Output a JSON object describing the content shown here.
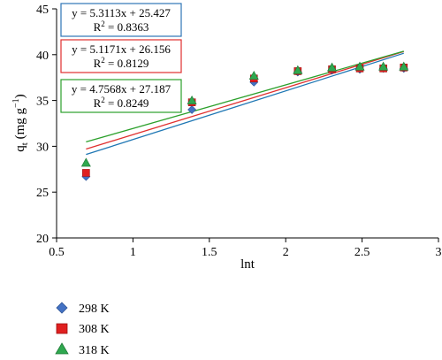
{
  "chart_data": {
    "type": "scatter",
    "title": "",
    "xlabel": "lnt",
    "ylabel": "q",
    "ylabel_sub": "t",
    "ylabel_unit": "(mg g",
    "ylabel_unit_sup": "−1",
    "ylabel_unit_close": ")",
    "xlim": [
      0.5,
      3
    ],
    "ylim": [
      20,
      45
    ],
    "x_ticks": [
      0.5,
      1,
      1.5,
      2,
      2.5,
      3
    ],
    "y_ticks": [
      20,
      25,
      30,
      35,
      40,
      45
    ],
    "x_tick_labels": [
      "0.5",
      "1",
      "1.5",
      "2",
      "2.5",
      "3"
    ],
    "y_tick_labels": [
      "20",
      "25",
      "30",
      "35",
      "40",
      "45"
    ],
    "grid": false,
    "legend_position": "bottom-left",
    "series": [
      {
        "name": "298 K",
        "marker": "diamond",
        "color": "#4472C4",
        "line_color": "#1f77b4",
        "x": [
          0.693,
          1.386,
          1.792,
          2.079,
          2.303,
          2.485,
          2.639,
          2.773
        ],
        "y": [
          26.7,
          34.0,
          37.0,
          38.1,
          38.3,
          38.4,
          38.5,
          38.5
        ],
        "fit": {
          "slope": 5.3113,
          "intercept": 25.427,
          "eq_line1": "y = 5.3113x + 25.427",
          "eq_line2_prefix": "R",
          "eq_line2_sup": "2",
          "eq_line2_suffix": " = 0.8363"
        }
      },
      {
        "name": "308 K",
        "marker": "square",
        "color": "#E02020",
        "line_color": "#e03030",
        "x": [
          0.693,
          1.386,
          1.792,
          2.079,
          2.303,
          2.485,
          2.639,
          2.773
        ],
        "y": [
          27.1,
          34.8,
          37.4,
          38.2,
          38.4,
          38.5,
          38.5,
          38.6
        ],
        "fit": {
          "slope": 5.1171,
          "intercept": 26.156,
          "eq_line1": "y = 5.1171x + 26.156",
          "eq_line2_prefix": "R",
          "eq_line2_sup": "2",
          "eq_line2_suffix": " = 0.8129"
        }
      },
      {
        "name": "318 K",
        "marker": "triangle",
        "color": "#2FA84F",
        "line_color": "#2ca02c",
        "x": [
          0.693,
          1.386,
          1.792,
          2.079,
          2.303,
          2.485,
          2.639,
          2.773
        ],
        "y": [
          28.2,
          35.0,
          37.7,
          38.3,
          38.6,
          38.7,
          38.7,
          38.7
        ],
        "fit": {
          "slope": 4.7568,
          "intercept": 27.187,
          "eq_line1": "y = 4.7568x + 27.187",
          "eq_line2_prefix": "R",
          "eq_line2_sup": "2",
          "eq_line2_suffix": " = 0.8249"
        }
      }
    ]
  }
}
